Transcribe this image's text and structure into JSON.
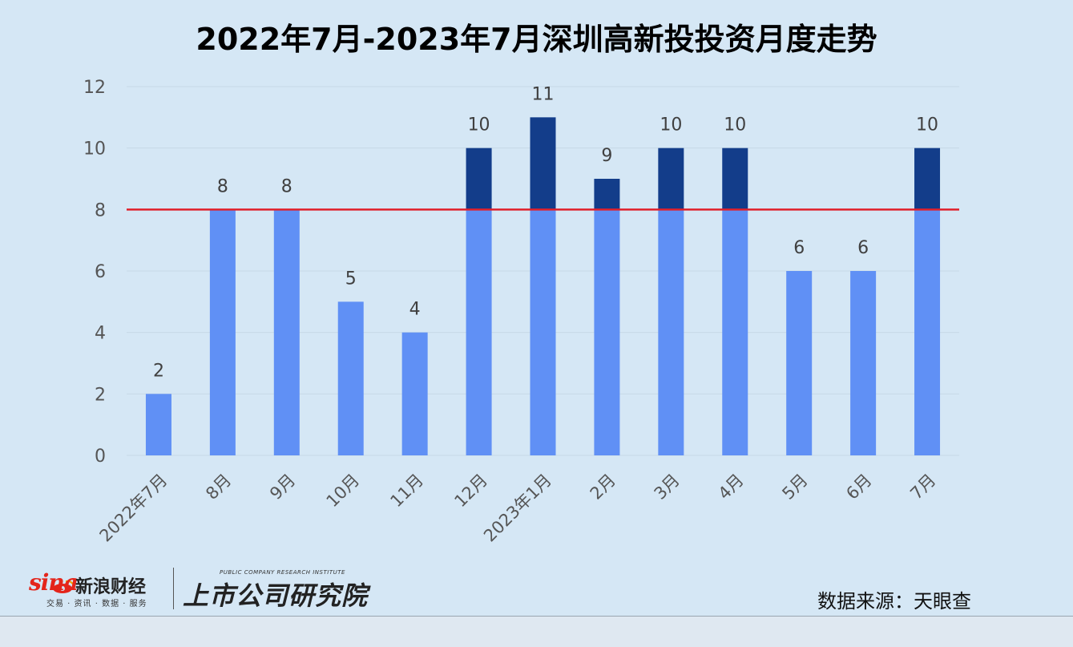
{
  "chart_data": {
    "type": "bar",
    "title": "2022年7月-2023年7月深圳高新投投资月度走势",
    "categories": [
      "2022年7月",
      "8月",
      "9月",
      "10月",
      "11月",
      "12月",
      "2023年1月",
      "2月",
      "3月",
      "4月",
      "5月",
      "6月",
      "7月"
    ],
    "values": [
      2,
      8,
      8,
      5,
      4,
      10,
      11,
      9,
      10,
      10,
      6,
      6,
      10
    ],
    "ylim": [
      0,
      12
    ],
    "yticks": [
      0,
      2,
      4,
      6,
      8,
      10,
      12
    ],
    "reference_line": 8,
    "grid": true,
    "colors": {
      "bar": "#6090f5",
      "bar_above_reference": "#133d8a",
      "reference_line": "#e0202a",
      "gridline": "#c6d8e6"
    }
  },
  "footer": {
    "sina_word": "sina",
    "sina_name": "新浪财经",
    "sina_tagline": "交易 · 资讯 · 数据 · 服务",
    "institute_en": "PUBLIC COMPANY RESEARCH INSTITUTE",
    "institute_cn": "上市公司研究院",
    "source": "数据来源：天眼查"
  }
}
